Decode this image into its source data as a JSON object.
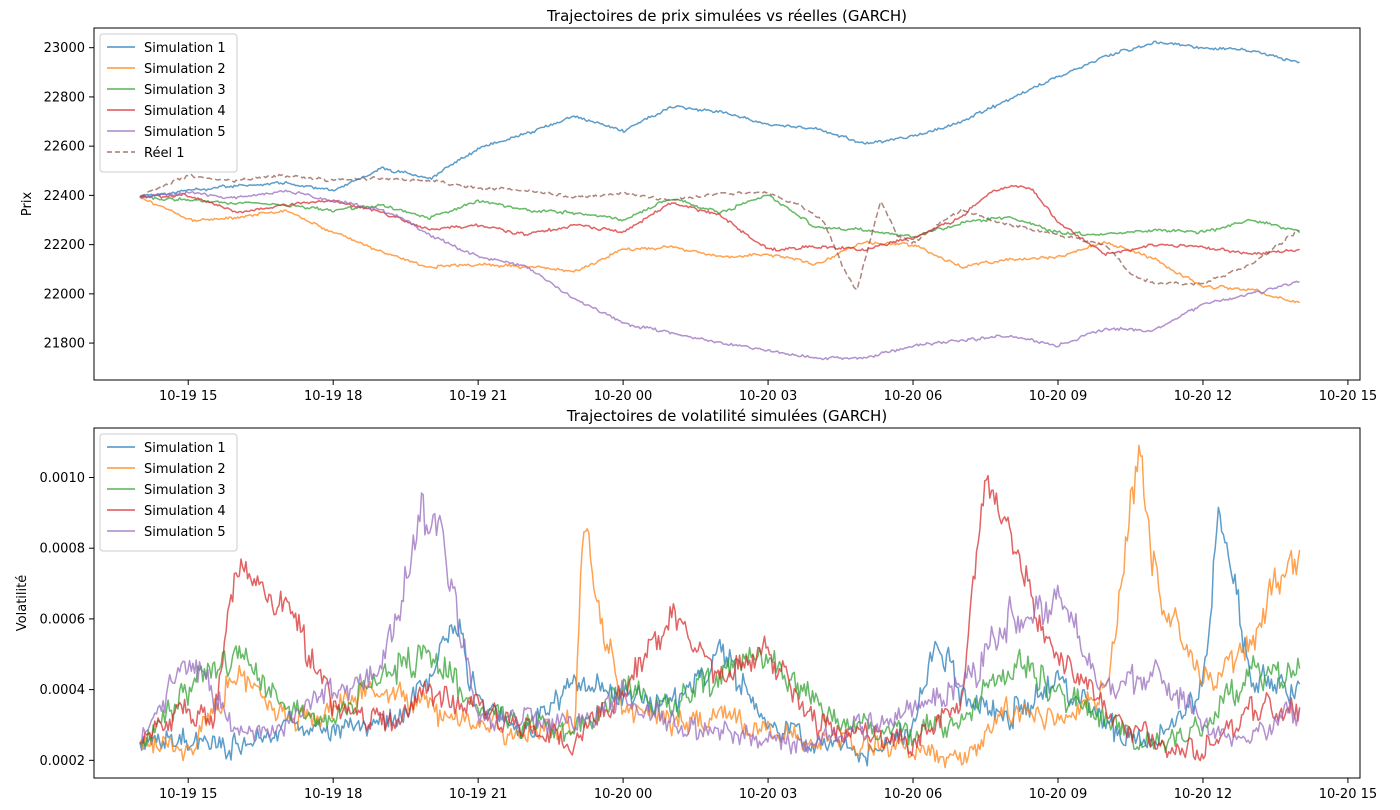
{
  "chart_data": [
    {
      "type": "line",
      "title": "Trajectoires de prix simulées vs réelles (GARCH)",
      "xlabel": "",
      "ylabel": "Prix",
      "x_range": [
        "2025-10-19 14:00",
        "2025-10-20 14:00"
      ],
      "ylim": [
        21650,
        23080
      ],
      "x_ticks": [
        "10-19 15",
        "10-19 18",
        "10-19 21",
        "10-20 00",
        "10-20 03",
        "10-20 06",
        "10-20 09",
        "10-20 12",
        "10-20 15"
      ],
      "y_ticks": [
        "21800",
        "22000",
        "22200",
        "22400",
        "22600",
        "22800",
        "23000"
      ],
      "legend_position": "top-left",
      "series": [
        {
          "name": "Simulation 1",
          "color": "#1f77b4",
          "dash": "solid",
          "x": [
            "10-19 14:00",
            "10-19 15:00",
            "10-19 16:00",
            "10-19 17:00",
            "10-19 18:00",
            "10-19 18:30",
            "10-19 19:00",
            "10-19 20:00",
            "10-19 21:00",
            "10-19 22:00",
            "10-19 23:00",
            "10-20 00:00",
            "10-20 01:00",
            "10-20 02:00",
            "10-20 03:00",
            "10-20 04:00",
            "10-20 05:00",
            "10-20 06:00",
            "10-20 07:00",
            "10-20 08:00",
            "10-20 09:00",
            "10-20 10:00",
            "10-20 11:00",
            "10-20 12:00",
            "10-20 13:00",
            "10-20 14:00"
          ],
          "y": [
            22395,
            22420,
            22440,
            22450,
            22420,
            22460,
            22510,
            22470,
            22590,
            22650,
            22720,
            22660,
            22760,
            22740,
            22690,
            22670,
            22610,
            22640,
            22700,
            22790,
            22880,
            22970,
            23020,
            23000,
            22990,
            22940
          ]
        },
        {
          "name": "Simulation 2",
          "color": "#ff7f0e",
          "dash": "solid",
          "x": [
            "10-19 14:00",
            "10-19 15:00",
            "10-19 16:00",
            "10-19 17:00",
            "10-19 18:00",
            "10-19 19:00",
            "10-19 20:00",
            "10-19 21:00",
            "10-19 22:00",
            "10-19 23:00",
            "10-20 00:00",
            "10-20 01:00",
            "10-20 02:00",
            "10-20 03:00",
            "10-20 04:00",
            "10-20 05:00",
            "10-20 06:00",
            "10-20 07:00",
            "10-20 08:00",
            "10-20 09:00",
            "10-20 10:00",
            "10-20 11:00",
            "10-20 12:00",
            "10-20 13:00",
            "10-20 14:00"
          ],
          "y": [
            22395,
            22300,
            22310,
            22340,
            22250,
            22170,
            22110,
            22120,
            22110,
            22090,
            22180,
            22190,
            22150,
            22160,
            22120,
            22210,
            22200,
            22110,
            22140,
            22150,
            22210,
            22140,
            22030,
            22020,
            21960
          ]
        },
        {
          "name": "Simulation 3",
          "color": "#2ca02c",
          "dash": "solid",
          "x": [
            "10-19 14:00",
            "10-19 15:00",
            "10-19 16:00",
            "10-19 17:00",
            "10-19 18:00",
            "10-19 19:00",
            "10-19 20:00",
            "10-19 21:00",
            "10-19 22:00",
            "10-19 23:00",
            "10-20 00:00",
            "10-20 01:00",
            "10-20 02:00",
            "10-20 03:00",
            "10-20 04:00",
            "10-20 05:00",
            "10-20 06:00",
            "10-20 07:00",
            "10-20 08:00",
            "10-20 09:00",
            "10-20 10:00",
            "10-20 11:00",
            "10-20 12:00",
            "10-20 13:00",
            "10-20 14:00"
          ],
          "y": [
            22395,
            22380,
            22370,
            22360,
            22340,
            22360,
            22310,
            22380,
            22340,
            22330,
            22300,
            22390,
            22330,
            22400,
            22270,
            22260,
            22230,
            22290,
            22310,
            22250,
            22240,
            22260,
            22250,
            22300,
            22250
          ]
        },
        {
          "name": "Simulation 4",
          "color": "#d62728",
          "dash": "solid",
          "x": [
            "10-19 14:00",
            "10-19 15:00",
            "10-19 16:00",
            "10-19 17:00",
            "10-19 18:00",
            "10-19 19:00",
            "10-19 20:00",
            "10-19 21:00",
            "10-19 22:00",
            "10-19 23:00",
            "10-20 00:00",
            "10-20 01:00",
            "10-20 02:00",
            "10-20 03:00",
            "10-20 04:00",
            "10-20 05:00",
            "10-20 06:00",
            "10-20 07:00",
            "10-20 07:30",
            "10-20 08:00",
            "10-20 08:30",
            "10-20 09:00",
            "10-20 10:00",
            "10-20 11:00",
            "10-20 12:00",
            "10-20 13:00",
            "10-20 14:00"
          ],
          "y": [
            22395,
            22400,
            22330,
            22360,
            22380,
            22330,
            22260,
            22280,
            22240,
            22280,
            22250,
            22370,
            22320,
            22180,
            22190,
            22180,
            22230,
            22310,
            22400,
            22440,
            22420,
            22290,
            22160,
            22200,
            22190,
            22160,
            22180
          ]
        },
        {
          "name": "Simulation 5",
          "color": "#9467bd",
          "dash": "solid",
          "x": [
            "10-19 14:00",
            "10-19 15:00",
            "10-19 16:00",
            "10-19 17:00",
            "10-19 18:00",
            "10-19 19:00",
            "10-19 19:30",
            "10-19 20:00",
            "10-19 21:00",
            "10-19 22:00",
            "10-19 23:00",
            "10-20 00:00",
            "10-20 01:00",
            "10-20 02:00",
            "10-20 03:00",
            "10-20 04:00",
            "10-20 05:00",
            "10-20 06:00",
            "10-20 07:00",
            "10-20 08:00",
            "10-20 09:00",
            "10-20 10:00",
            "10-20 11:00",
            "10-20 12:00",
            "10-20 13:00",
            "10-20 14:00"
          ],
          "y": [
            22395,
            22410,
            22390,
            22420,
            22380,
            22340,
            22300,
            22240,
            22150,
            22110,
            21980,
            21880,
            21840,
            21800,
            21770,
            21740,
            21740,
            21790,
            21810,
            21830,
            21790,
            21860,
            21850,
            21960,
            22000,
            22050
          ]
        },
        {
          "name": "Réel 1",
          "color": "#8c564b",
          "dash": "dashed",
          "x": [
            "10-19 14:00",
            "10-19 15:00",
            "10-19 16:00",
            "10-19 17:00",
            "10-19 18:00",
            "10-19 19:00",
            "10-19 20:00",
            "10-19 21:00",
            "10-19 22:00",
            "10-19 23:00",
            "10-20 00:00",
            "10-20 01:00",
            "10-20 02:00",
            "10-20 03:00",
            "10-20 03:40",
            "10-20 04:10",
            "10-20 04:30",
            "10-20 04:50",
            "10-20 05:20",
            "10-20 05:40",
            "10-20 06:00",
            "10-20 07:00",
            "10-20 08:00",
            "10-20 09:00",
            "10-20 10:00",
            "10-20 10:30",
            "10-20 11:00",
            "10-20 12:00",
            "10-20 13:00",
            "10-20 14:00"
          ],
          "y": [
            22395,
            22480,
            22460,
            22480,
            22460,
            22470,
            22460,
            22430,
            22420,
            22390,
            22410,
            22380,
            22410,
            22410,
            22360,
            22290,
            22130,
            22010,
            22380,
            22240,
            22210,
            22340,
            22280,
            22240,
            22200,
            22080,
            22040,
            22040,
            22120,
            22260
          ]
        }
      ]
    },
    {
      "type": "line",
      "title": "Trajectoires de volatilité simulées (GARCH)",
      "xlabel": "",
      "ylabel": "Volatilité",
      "x_range": [
        "2025-10-19 14:00",
        "2025-10-20 14:00"
      ],
      "ylim": [
        0.00015,
        0.00114
      ],
      "x_ticks": [
        "10-19 15",
        "10-19 18",
        "10-19 21",
        "10-20 00",
        "10-20 03",
        "10-20 06",
        "10-20 09",
        "10-20 12",
        "10-20 15"
      ],
      "y_ticks": [
        "0.0002",
        "0.0004",
        "0.0006",
        "0.0008",
        "0.0010"
      ],
      "legend_position": "top-left",
      "series": [
        {
          "name": "Simulation 1",
          "color": "#1f77b4",
          "x": [
            "10-19 14:00",
            "10-19 15:00",
            "10-19 16:00",
            "10-19 17:00",
            "10-19 18:00",
            "10-19 19:00",
            "10-19 20:00",
            "10-19 20:30",
            "10-19 21:00",
            "10-19 22:00",
            "10-19 23:00",
            "10-20 00:00",
            "10-20 01:00",
            "10-20 02:00",
            "10-20 03:00",
            "10-20 04:00",
            "10-20 05:00",
            "10-20 06:00",
            "10-20 06:30",
            "10-20 07:00",
            "10-20 08:00",
            "10-20 09:00",
            "10-20 10:00",
            "10-20 11:00",
            "10-20 12:00",
            "10-20 12:20",
            "10-20 13:00",
            "10-20 14:00"
          ],
          "y": [
            0.00025,
            0.00027,
            0.00024,
            0.0003,
            0.00028,
            0.0003,
            0.0004,
            0.0006,
            0.00035,
            0.00028,
            0.00042,
            0.0004,
            0.00035,
            0.0005,
            0.0003,
            0.00025,
            0.00022,
            0.0003,
            0.00055,
            0.00038,
            0.00032,
            0.00042,
            0.0003,
            0.00025,
            0.0004,
            0.00088,
            0.00045,
            0.0004
          ]
        },
        {
          "name": "Simulation 2",
          "color": "#ff7f0e",
          "x": [
            "10-19 14:00",
            "10-19 15:00",
            "10-19 16:00",
            "10-19 17:00",
            "10-19 18:00",
            "10-19 19:00",
            "10-19 20:00",
            "10-19 21:00",
            "10-19 22:00",
            "10-19 23:00",
            "10-19 23:10",
            "10-20 00:00",
            "10-20 01:00",
            "10-20 02:00",
            "10-20 03:00",
            "10-20 04:00",
            "10-20 05:00",
            "10-20 06:00",
            "10-20 07:00",
            "10-20 08:00",
            "10-20 09:00",
            "10-20 10:00",
            "10-20 10:40",
            "10-20 11:00",
            "10-20 12:00",
            "10-20 13:00",
            "10-20 14:00"
          ],
          "y": [
            0.00025,
            0.00022,
            0.00045,
            0.00032,
            0.00035,
            0.0004,
            0.00035,
            0.0003,
            0.00028,
            0.0003,
            0.00085,
            0.00035,
            0.0003,
            0.00032,
            0.00028,
            0.00026,
            0.00025,
            0.00022,
            0.0002,
            0.00035,
            0.0003,
            0.0004,
            0.0011,
            0.0007,
            0.00042,
            0.00055,
            0.00082
          ]
        },
        {
          "name": "Simulation 3",
          "color": "#2ca02c",
          "x": [
            "10-19 14:00",
            "10-19 15:00",
            "10-19 16:00",
            "10-19 17:00",
            "10-19 18:00",
            "10-19 19:00",
            "10-19 20:00",
            "10-19 21:00",
            "10-19 22:00",
            "10-19 23:00",
            "10-20 00:00",
            "10-20 01:00",
            "10-20 02:00",
            "10-20 03:00",
            "10-20 04:00",
            "10-20 05:00",
            "10-20 06:00",
            "10-20 07:00",
            "10-20 08:00",
            "10-20 09:00",
            "10-20 10:00",
            "10-20 11:00",
            "10-20 12:00",
            "10-20 13:00",
            "10-20 14:00"
          ],
          "y": [
            0.00025,
            0.0004,
            0.0005,
            0.00035,
            0.0003,
            0.00045,
            0.0005,
            0.00035,
            0.0003,
            0.00028,
            0.0004,
            0.00035,
            0.00045,
            0.0005,
            0.00035,
            0.0003,
            0.00028,
            0.00032,
            0.00048,
            0.0004,
            0.0003,
            0.00024,
            0.0003,
            0.00045,
            0.00045
          ]
        },
        {
          "name": "Simulation 4",
          "color": "#d62728",
          "x": [
            "10-19 14:00",
            "10-19 15:00",
            "10-19 15:30",
            "10-19 16:00",
            "10-19 17:00",
            "10-19 18:00",
            "10-19 19:00",
            "10-19 20:00",
            "10-19 21:00",
            "10-19 22:00",
            "10-19 23:00",
            "10-20 00:00",
            "10-20 01:00",
            "10-20 02:00",
            "10-20 03:00",
            "10-20 04:00",
            "10-20 05:00",
            "10-20 06:00",
            "10-20 07:00",
            "10-20 07:30",
            "10-20 08:00",
            "10-20 09:00",
            "10-20 10:00",
            "10-20 11:00",
            "10-20 12:00",
            "10-20 13:00",
            "10-20 14:00"
          ],
          "y": [
            0.00025,
            0.00035,
            0.0003,
            0.00073,
            0.00065,
            0.00035,
            0.0003,
            0.0004,
            0.00035,
            0.00028,
            0.00025,
            0.0004,
            0.0006,
            0.00045,
            0.0005,
            0.0003,
            0.00028,
            0.00025,
            0.00035,
            0.001,
            0.0008,
            0.0005,
            0.00035,
            0.00025,
            0.00022,
            0.00035,
            0.00035
          ]
        },
        {
          "name": "Simulation 5",
          "color": "#9467bd",
          "x": [
            "10-19 14:00",
            "10-19 15:00",
            "10-19 16:00",
            "10-19 17:00",
            "10-19 18:00",
            "10-19 19:00",
            "10-19 19:50",
            "10-19 20:20",
            "10-19 21:00",
            "10-19 22:00",
            "10-19 23:00",
            "10-20 00:00",
            "10-20 01:00",
            "10-20 02:00",
            "10-20 03:00",
            "10-20 04:00",
            "10-20 05:00",
            "10-20 06:00",
            "10-20 07:00",
            "10-20 08:00",
            "10-20 09:00",
            "10-20 10:00",
            "10-20 11:00",
            "10-20 12:00",
            "10-20 13:00",
            "10-20 14:00"
          ],
          "y": [
            0.00025,
            0.0005,
            0.00028,
            0.0003,
            0.0004,
            0.00045,
            0.0009,
            0.0008,
            0.0003,
            0.00032,
            0.0003,
            0.00038,
            0.0003,
            0.00028,
            0.00026,
            0.00025,
            0.0003,
            0.00035,
            0.0004,
            0.0006,
            0.00065,
            0.0004,
            0.00045,
            0.0003,
            0.00025,
            0.00035
          ]
        }
      ]
    }
  ]
}
